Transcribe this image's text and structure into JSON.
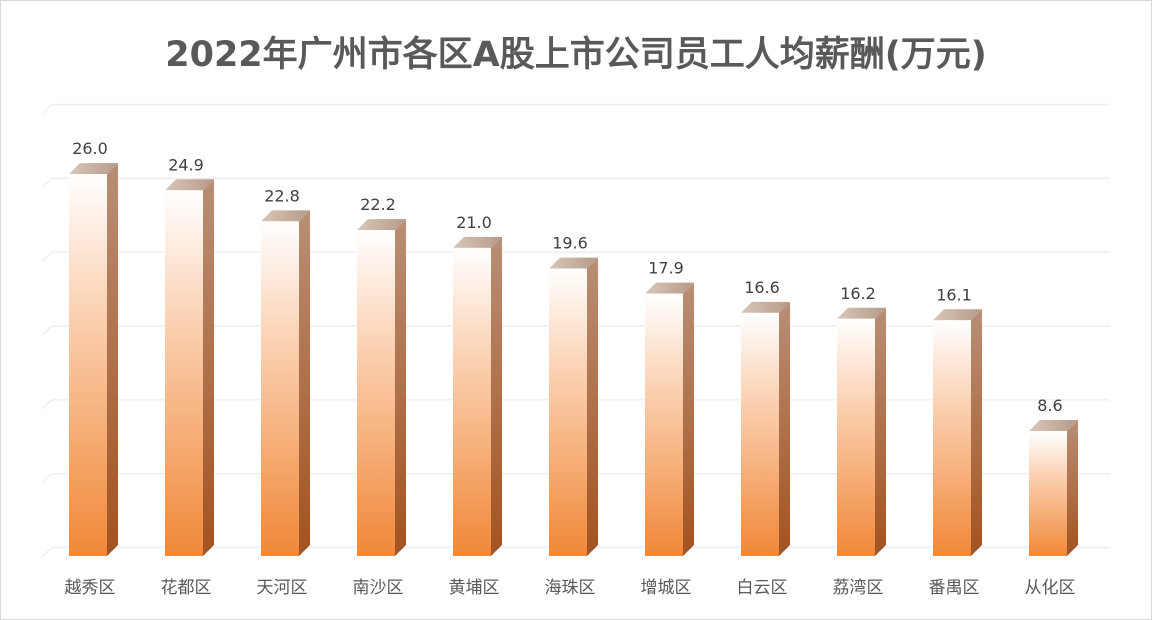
{
  "chart_data": {
    "type": "bar",
    "title": "2022年广州市各区A股上市公司员工人均薪酬(万元)",
    "categories": [
      "越秀区",
      "花都区",
      "天河区",
      "南沙区",
      "黄埔区",
      "海珠区",
      "增城区",
      "白云区",
      "荔湾区",
      "番禺区",
      "从化区"
    ],
    "values": [
      26.0,
      24.9,
      22.8,
      22.2,
      21.0,
      19.6,
      17.9,
      16.6,
      16.2,
      16.1,
      8.6
    ],
    "data_labels": [
      "26.0",
      "24.9",
      "22.8",
      "22.2",
      "21.0",
      "19.6",
      "17.9",
      "16.6",
      "16.2",
      "16.1",
      "8.6"
    ],
    "xlabel": "",
    "ylabel": "",
    "ylim": [
      0,
      30
    ],
    "grid": true,
    "legend": "none",
    "bar_color_top": "#ffffff",
    "bar_color_bottom": "#f08a3c",
    "bar_side_color": "#a0522d"
  }
}
